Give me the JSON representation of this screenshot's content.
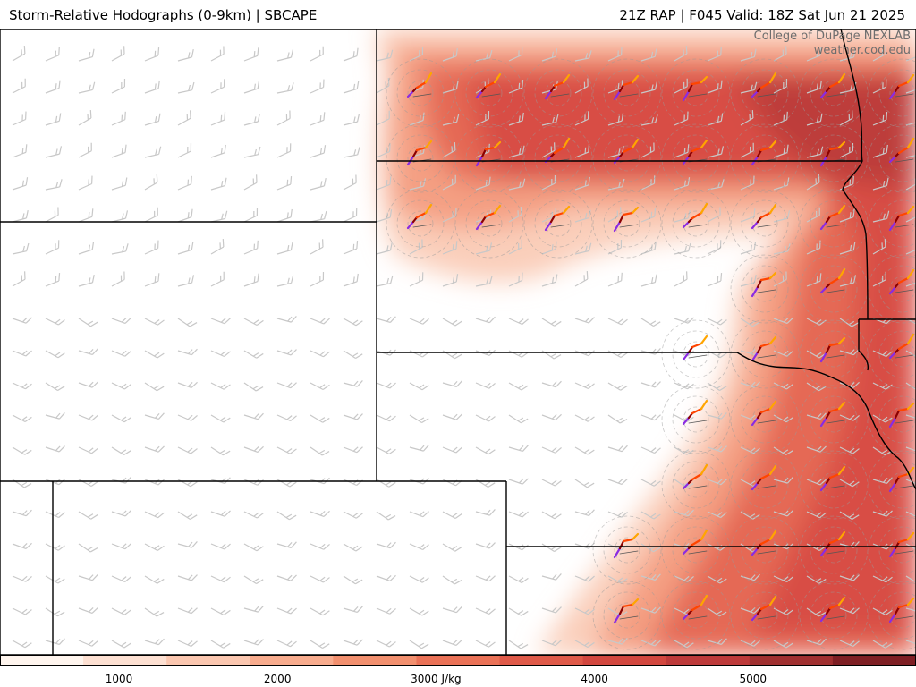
{
  "header": {
    "left_title": "Storm-Relative Hodographs (0-9km) | SBCAPE",
    "right_title": "21Z RAP | F045 Valid: 18Z Sat Jun 21 2025"
  },
  "credit": {
    "line1": "College of DuPage NEXLAB",
    "line2": "weather.cod.edu"
  },
  "colorbar": {
    "labels": [
      "1000",
      "2000",
      "3000 J/kg",
      "4000",
      "5000"
    ],
    "min": 0,
    "max": 6000,
    "colors": [
      "#fff5ee",
      "#fde0d2",
      "#fbc7b0",
      "#f8ac8e",
      "#f2906f",
      "#ea7257",
      "#df5a49",
      "#d2473f",
      "#bd3a3a",
      "#a03030",
      "#7e1f24"
    ]
  },
  "colors": {
    "hodo_purple": "#8a2be2",
    "hodo_darkred": "#8b0000",
    "hodo_orange": "#ff4500",
    "hodo_gold": "#ffa500",
    "barb_gray": "#c8c8c8",
    "border": "#000000"
  }
}
